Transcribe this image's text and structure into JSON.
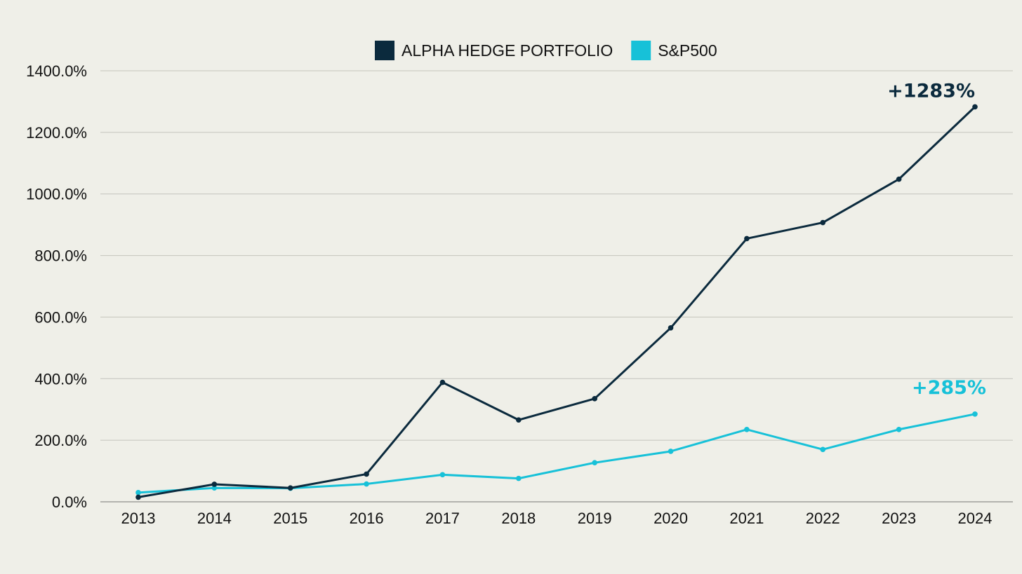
{
  "chart_data": {
    "type": "line",
    "title": "",
    "xlabel": "",
    "ylabel": "",
    "x": [
      "2013",
      "2014",
      "2015",
      "2016",
      "2017",
      "2018",
      "2019",
      "2020",
      "2021",
      "2022",
      "2023",
      "2024"
    ],
    "ylim": [
      0,
      1400
    ],
    "yticks": [
      0,
      200,
      400,
      600,
      800,
      1000,
      1200,
      1400
    ],
    "ytick_labels": [
      "0.0%",
      "200.0%",
      "400.0%",
      "600.0%",
      "800.0%",
      "1000.0%",
      "1200.0%",
      "1400.0%"
    ],
    "grid": true,
    "legend_position": "top-center",
    "series": [
      {
        "name": "ALPHA HEDGE PORTFOLIO",
        "color": "#0b2a3d",
        "values": [
          15,
          57,
          45,
          90,
          388,
          266,
          335,
          565,
          855,
          907,
          1048,
          1283
        ]
      },
      {
        "name": "S&P500",
        "color": "#17c1d8",
        "values": [
          30,
          45,
          44,
          58,
          88,
          76,
          127,
          164,
          235,
          170,
          235,
          285
        ]
      }
    ],
    "annotations": [
      {
        "series": 0,
        "text": "+1283%"
      },
      {
        "series": 1,
        "text": "+285%"
      }
    ]
  }
}
